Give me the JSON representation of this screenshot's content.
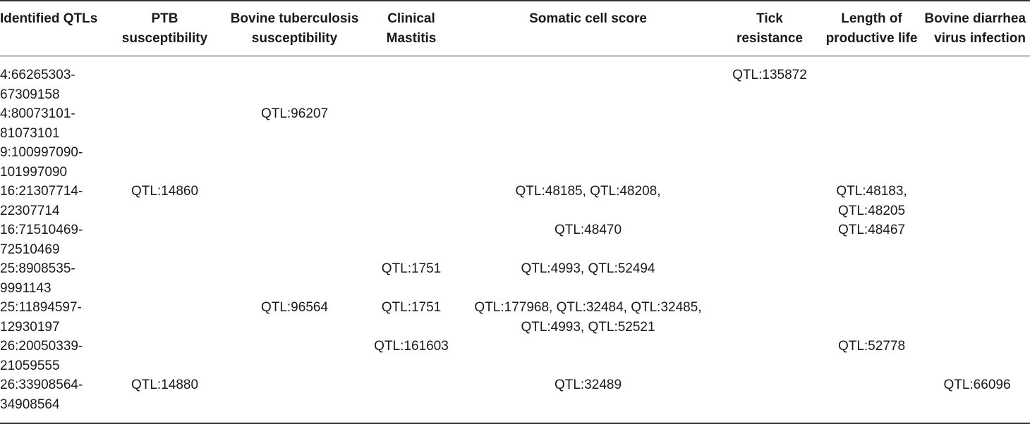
{
  "table": {
    "headers": [
      "Identified QTLs",
      "PTB\nsusceptibility",
      "Bovine tuberculosis\nsusceptibility",
      "Clinical\nMastitis",
      "Somatic cell score",
      "Tick\nresistance",
      "Length of\nproductive life",
      "Bovine diarrhea\nvirus infection"
    ],
    "rows": [
      [
        "4:66265303-\n67309158",
        "",
        "",
        "",
        "",
        "QTL:135872",
        "",
        ""
      ],
      [
        "4:80073101-\n81073101",
        "",
        "QTL:96207",
        "",
        "",
        "",
        "",
        ""
      ],
      [
        "9:100997090-\n101997090",
        "",
        "",
        "",
        "",
        "",
        "",
        ""
      ],
      [
        "16:21307714-\n22307714",
        "QTL:14860",
        "",
        "",
        "QTL:48185, QTL:48208,",
        "",
        "QTL:48183,\nQTL:48205",
        ""
      ],
      [
        "16:71510469-\n72510469",
        "",
        "",
        "",
        "QTL:48470",
        "",
        "QTL:48467",
        ""
      ],
      [
        "25:8908535-\n9991143",
        "",
        "",
        "QTL:1751",
        "QTL:4993, QTL:52494",
        "",
        "",
        ""
      ],
      [
        "25:11894597-\n12930197",
        "",
        "QTL:96564",
        "QTL:1751",
        "QTL:177968, QTL:32484, QTL:32485,\nQTL:4993, QTL:52521",
        "",
        "",
        ""
      ],
      [
        "26:20050339-\n21059555",
        "",
        "",
        "QTL:161603",
        "",
        "",
        "QTL:52778",
        ""
      ],
      [
        "26:33908564-\n34908564",
        "QTL:14880",
        "",
        "",
        "QTL:32489",
        "",
        "",
        "QTL:66096"
      ]
    ]
  }
}
